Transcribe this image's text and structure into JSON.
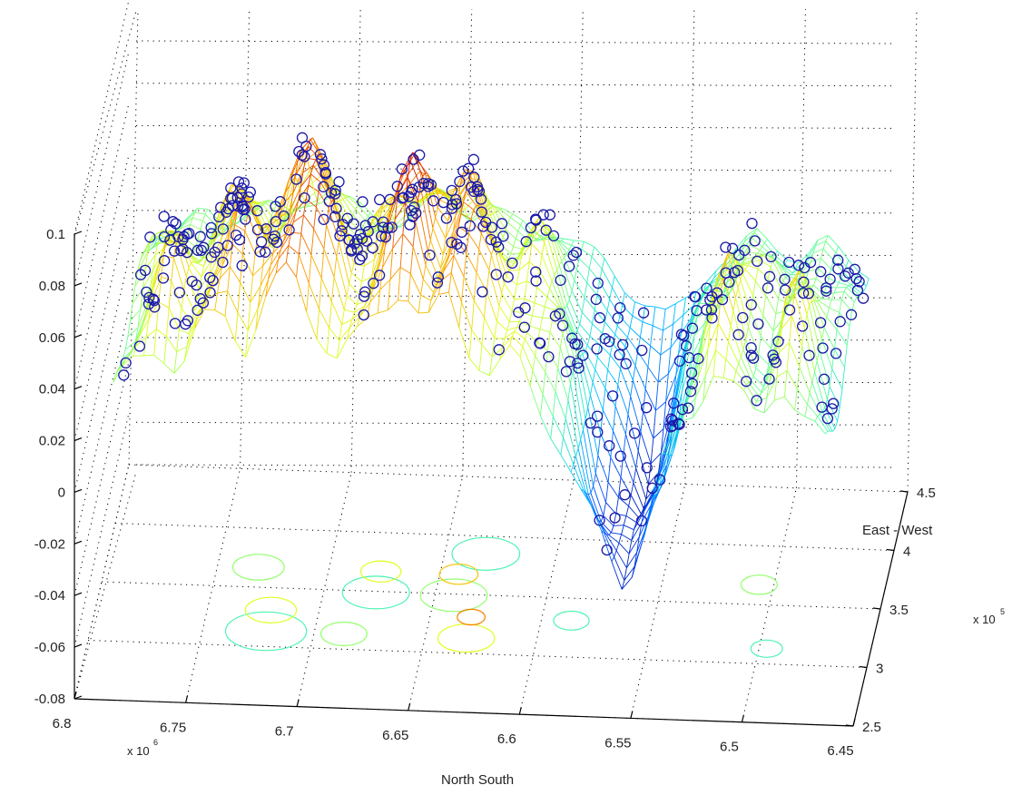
{
  "chart_data": {
    "type": "surface",
    "title": "",
    "xlabel": "North South",
    "ylabel": "East - West",
    "zlabel": "",
    "x_ticks": [
      "6.8",
      "6.75",
      "6.7",
      "6.65",
      "6.6",
      "6.55",
      "6.5",
      "6.45"
    ],
    "x_multiplier": {
      "base": "x 10",
      "exp": "6"
    },
    "y_ticks": [
      "2.5",
      "3",
      "3.5",
      "4",
      "4.5"
    ],
    "y_multiplier": {
      "base": "x 10",
      "exp": "5"
    },
    "z_ticks": [
      "-0.08",
      "-0.06",
      "-0.04",
      "-0.02",
      "0",
      "0.02",
      "0.04",
      "0.06",
      "0.08",
      "0.1"
    ],
    "xlim": [
      6.45,
      6.8
    ],
    "ylim": [
      2.5,
      4.5
    ],
    "zlim": [
      -0.08,
      0.1
    ],
    "grid": true,
    "colormap": [
      "#00008f",
      "#0050ff",
      "#00c8ff",
      "#60ffa0",
      "#e0ff20",
      "#ffa000",
      "#d01000"
    ],
    "marker_color": "#1a1aa8",
    "surface_profile": [
      {
        "ns": 6.785,
        "z": 0.035
      },
      {
        "ns": 6.775,
        "z": 0.05
      },
      {
        "ns": 6.765,
        "z": 0.062
      },
      {
        "ns": 6.755,
        "z": 0.045
      },
      {
        "ns": 6.745,
        "z": 0.07
      },
      {
        "ns": 6.735,
        "z": 0.078
      },
      {
        "ns": 6.725,
        "z": 0.06
      },
      {
        "ns": 6.715,
        "z": 0.085
      },
      {
        "ns": 6.705,
        "z": 0.1
      },
      {
        "ns": 6.695,
        "z": 0.075
      },
      {
        "ns": 6.685,
        "z": 0.055
      },
      {
        "ns": 6.675,
        "z": 0.065
      },
      {
        "ns": 6.665,
        "z": 0.082
      },
      {
        "ns": 6.655,
        "z": 0.095
      },
      {
        "ns": 6.645,
        "z": 0.07
      },
      {
        "ns": 6.635,
        "z": 0.09
      },
      {
        "ns": 6.625,
        "z": 0.065
      },
      {
        "ns": 6.615,
        "z": 0.05
      },
      {
        "ns": 6.605,
        "z": 0.06
      },
      {
        "ns": 6.595,
        "z": 0.04
      },
      {
        "ns": 6.585,
        "z": 0.02
      },
      {
        "ns": 6.575,
        "z": -0.01
      },
      {
        "ns": 6.565,
        "z": -0.03
      },
      {
        "ns": 6.555,
        "z": -0.05
      },
      {
        "ns": 6.545,
        "z": -0.02
      },
      {
        "ns": 6.535,
        "z": 0.02
      },
      {
        "ns": 6.525,
        "z": 0.035
      },
      {
        "ns": 6.515,
        "z": 0.06
      },
      {
        "ns": 6.505,
        "z": 0.045
      },
      {
        "ns": 6.495,
        "z": 0.03
      },
      {
        "ns": 6.485,
        "z": 0.055
      },
      {
        "ns": 6.475,
        "z": 0.035
      },
      {
        "ns": 6.465,
        "z": 0.02
      }
    ]
  }
}
